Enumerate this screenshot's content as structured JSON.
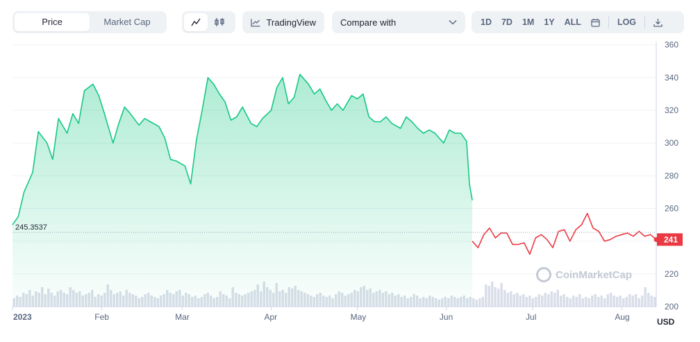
{
  "toolbar": {
    "tabs": [
      "Price",
      "Market Cap"
    ],
    "active_tab": "Price",
    "icons": [
      "line-chart-icon",
      "candlestick-icon"
    ],
    "tradingview_label": "TradingView",
    "compare_label": "Compare with",
    "ranges": [
      "1D",
      "7D",
      "1M",
      "1Y",
      "ALL"
    ],
    "log_label": "LOG"
  },
  "colors": {
    "up": "#16c784",
    "down": "#ea3943",
    "grid": "#eff2f5",
    "volume": "#cfd6e4"
  },
  "watermark": "CoinMarketCap",
  "chart_data": {
    "type": "area",
    "ylim": [
      200,
      362
    ],
    "yticks": [
      200,
      220,
      240,
      260,
      280,
      300,
      320,
      340,
      360
    ],
    "ylabel": "USD",
    "xticks": [
      "2023",
      "Feb",
      "Mar",
      "Apr",
      "May",
      "Jun",
      "Jul",
      "Aug"
    ],
    "reference_price": 245.3537,
    "reference_label": "245.3537",
    "current_price_label": "241",
    "x_start": "2023-01-01",
    "x_end": "2023-08-13",
    "series": [
      {
        "name": "",
        "x": [
          "2023-01-01",
          "2023-01-03",
          "2023-01-05",
          "2023-01-08",
          "2023-01-10",
          "2023-01-13",
          "2023-01-15",
          "2023-01-17",
          "2023-01-20",
          "2023-01-22",
          "2023-01-24",
          "2023-01-26",
          "2023-01-29",
          "2023-01-31",
          "2023-02-02",
          "2023-02-05",
          "2023-02-07",
          "2023-02-09",
          "2023-02-11",
          "2023-02-14",
          "2023-02-16",
          "2023-02-18",
          "2023-02-21",
          "2023-02-23",
          "2023-02-25",
          "2023-02-27",
          "2023-03-02",
          "2023-03-04",
          "2023-03-06",
          "2023-03-08",
          "2023-03-10",
          "2023-03-12",
          "2023-03-14",
          "2023-03-16",
          "2023-03-18",
          "2023-03-20",
          "2023-03-22",
          "2023-03-25",
          "2023-03-27",
          "2023-03-29",
          "2023-04-01",
          "2023-04-03",
          "2023-04-05",
          "2023-04-07",
          "2023-04-09",
          "2023-04-11",
          "2023-04-14",
          "2023-04-16",
          "2023-04-18",
          "2023-04-20",
          "2023-04-22",
          "2023-04-24",
          "2023-04-26",
          "2023-04-29",
          "2023-05-01",
          "2023-05-03",
          "2023-05-05",
          "2023-05-07",
          "2023-05-09",
          "2023-05-11",
          "2023-05-13",
          "2023-05-16",
          "2023-05-18",
          "2023-05-20",
          "2023-05-22",
          "2023-05-24",
          "2023-05-26",
          "2023-05-28",
          "2023-05-31",
          "2023-06-02",
          "2023-06-04",
          "2023-06-06",
          "2023-06-08",
          "2023-06-09",
          "2023-06-10"
        ],
        "values": [
          250,
          255,
          270,
          282,
          307,
          300,
          290,
          315,
          306,
          318,
          312,
          332,
          336,
          329,
          318,
          300,
          312,
          322,
          318,
          311,
          315,
          313,
          310,
          303,
          290,
          289,
          286,
          275,
          302,
          320,
          340,
          336,
          330,
          325,
          314,
          316,
          322,
          312,
          310,
          315,
          320,
          334,
          340,
          324,
          328,
          342,
          336,
          330,
          333,
          326,
          320,
          324,
          320,
          329,
          327,
          330,
          316,
          313,
          313,
          316,
          312,
          309,
          316,
          313,
          309,
          306,
          308,
          306,
          300,
          308,
          306,
          306,
          301,
          275,
          265
        ]
      },
      {
        "name": "",
        "x": [
          "2023-06-10",
          "2023-06-12",
          "2023-06-14",
          "2023-06-16",
          "2023-06-18",
          "2023-06-20",
          "2023-06-22",
          "2023-06-24",
          "2023-06-26",
          "2023-06-28",
          "2023-06-30",
          "2023-07-02",
          "2023-07-04",
          "2023-07-06",
          "2023-07-08",
          "2023-07-10",
          "2023-07-12",
          "2023-07-14",
          "2023-07-16",
          "2023-07-18",
          "2023-07-20",
          "2023-07-22",
          "2023-07-24",
          "2023-07-26",
          "2023-07-28",
          "2023-07-30",
          "2023-08-01",
          "2023-08-03",
          "2023-08-05",
          "2023-08-07",
          "2023-08-09",
          "2023-08-11",
          "2023-08-13"
        ],
        "values": [
          240,
          236,
          244,
          248,
          242,
          245,
          245,
          238,
          238,
          239,
          232,
          242,
          244,
          241,
          236,
          246,
          247,
          240,
          247,
          250,
          257,
          248,
          246,
          240,
          241,
          243,
          244,
          245,
          243,
          246,
          243,
          244,
          241
        ]
      }
    ],
    "volume": [
      0.3,
      0.4,
      0.35,
      0.5,
      0.45,
      0.6,
      0.4,
      0.55,
      0.5,
      0.7,
      0.45,
      0.65,
      0.5,
      0.4,
      0.55,
      0.6,
      0.5,
      0.45,
      0.7,
      0.6,
      0.5,
      0.55,
      0.4,
      0.45,
      0.5,
      0.6,
      0.35,
      0.45,
      0.4,
      0.5,
      0.8,
      0.6,
      0.45,
      0.5,
      0.55,
      0.4,
      0.6,
      0.5,
      0.45,
      0.4,
      0.3,
      0.35,
      0.45,
      0.5,
      0.4,
      0.35,
      0.3,
      0.4,
      0.45,
      0.6,
      0.5,
      0.45,
      0.55,
      0.6,
      0.4,
      0.5,
      0.45,
      0.35,
      0.4,
      0.3,
      0.35,
      0.45,
      0.5,
      0.4,
      0.3,
      0.35,
      0.55,
      0.45,
      0.4,
      0.3,
      0.7,
      0.5,
      0.45,
      0.4,
      0.45,
      0.5,
      0.55,
      0.6,
      0.8,
      0.55,
      0.9,
      0.7,
      0.6,
      0.5,
      0.85,
      0.55,
      0.6,
      0.5,
      0.7,
      0.65,
      0.75,
      0.6,
      0.55,
      0.5,
      0.45,
      0.4,
      0.35,
      0.45,
      0.5,
      0.4,
      0.35,
      0.4,
      0.3,
      0.45,
      0.55,
      0.5,
      0.4,
      0.45,
      0.5,
      0.6,
      0.55,
      0.7,
      0.75,
      0.6,
      0.65,
      0.5,
      0.55,
      0.6,
      0.5,
      0.55,
      0.45,
      0.5,
      0.4,
      0.45,
      0.35,
      0.4,
      0.3,
      0.35,
      0.45,
      0.4,
      0.3,
      0.35,
      0.3,
      0.4,
      0.35,
      0.3,
      0.25,
      0.3,
      0.35,
      0.3,
      0.4,
      0.35,
      0.3,
      0.35,
      0.4,
      0.3,
      0.35,
      0.3,
      0.25,
      0.3,
      0.35,
      0.8,
      0.75,
      0.9,
      0.7,
      0.65,
      0.85,
      0.6,
      0.5,
      0.55,
      0.45,
      0.5,
      0.4,
      0.45,
      0.35,
      0.4,
      0.3,
      0.35,
      0.45,
      0.4,
      0.5,
      0.45,
      0.55,
      0.5,
      0.6,
      0.4,
      0.45,
      0.35,
      0.3,
      0.4,
      0.35,
      0.45,
      0.3,
      0.35,
      0.3,
      0.4,
      0.45,
      0.35,
      0.4,
      0.3,
      0.45,
      0.5,
      0.4,
      0.35,
      0.4,
      0.3,
      0.35,
      0.45,
      0.4,
      0.45,
      0.3,
      0.4,
      0.7,
      0.5,
      0.4,
      0.35
    ]
  }
}
